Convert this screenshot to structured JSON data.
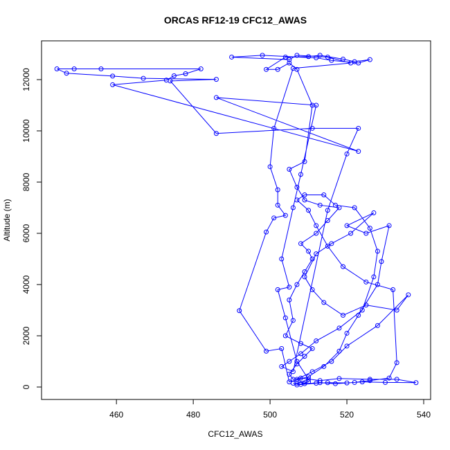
{
  "chart_data": {
    "type": "line",
    "title": "ORCAS RF12-19 CFC12_AWAS",
    "x_label": "CFC12_AWAS",
    "y_label": "Altitude (m)",
    "color": "#0000ff",
    "markers": true,
    "xlim": [
      440.5,
      541.8
    ],
    "ylim": [
      -486,
      13514
    ],
    "xticks": [
      460,
      480,
      500,
      520,
      540
    ],
    "yticks": [
      0,
      2000,
      4000,
      6000,
      8000,
      10000,
      12000
    ],
    "x": [
      506,
      508,
      510,
      507,
      512,
      515,
      520,
      524,
      530,
      538,
      533,
      526,
      518,
      513,
      508,
      506,
      505,
      507,
      509,
      511,
      508,
      504,
      506,
      505,
      507,
      509,
      511,
      510,
      508,
      512,
      515,
      518,
      513,
      509,
      507,
      505,
      509,
      511,
      507,
      505,
      502,
      499,
      504,
      510,
      513,
      519,
      522,
      526,
      523,
      516,
      512,
      498,
      490,
      505,
      507,
      515,
      521,
      506,
      501,
      500,
      502,
      502,
      504,
      501,
      499,
      492,
      499,
      503,
      505,
      510,
      514,
      518,
      520,
      523,
      528,
      529,
      531,
      525,
      520,
      527,
      521,
      516,
      512,
      509,
      511,
      514,
      519,
      525,
      533,
      536,
      528,
      520,
      516,
      511,
      507,
      509,
      513,
      517,
      522,
      526,
      531,
      533,
      532,
      525,
      519,
      515,
      512,
      510,
      507,
      509,
      514,
      517,
      522,
      526,
      528,
      527,
      524,
      518,
      512,
      508,
      505,
      503,
      506,
      515,
      520,
      523,
      511,
      486,
      474,
      486,
      467,
      459,
      447,
      444.5,
      449,
      456,
      482,
      478,
      475,
      473,
      459,
      523,
      486,
      512,
      508,
      506,
      503,
      505,
      502,
      504,
      507,
      510,
      507
    ],
    "values": [
      150,
      100,
      200,
      80,
      150,
      170,
      160,
      200,
      180,
      170,
      300,
      300,
      330,
      250,
      350,
      300,
      500,
      900,
      1200,
      1500,
      1700,
      2000,
      2600,
      3400,
      4000,
      4500,
      5000,
      5300,
      5600,
      6000,
      6500,
      7000,
      7100,
      7300,
      7800,
      8500,
      8800,
      11000,
      12400,
      12650,
      12400,
      12400,
      12880,
      12900,
      12950,
      12800,
      12700,
      12780,
      12650,
      12750,
      12850,
      12950,
      12880,
      12780,
      12950,
      12880,
      12650,
      12440,
      10100,
      8600,
      7700,
      7100,
      6700,
      6600,
      6050,
      2980,
      1400,
      1500,
      200,
      400,
      800,
      1400,
      2100,
      2800,
      4000,
      4900,
      6300,
      6000,
      6300,
      6800,
      6000,
      5600,
      5200,
      4300,
      3800,
      3300,
      2800,
      3200,
      3000,
      3600,
      2400,
      1600,
      1000,
      600,
      300,
      130,
      170,
      130,
      180,
      250,
      350,
      950,
      3800,
      4100,
      4700,
      5500,
      6300,
      6900,
      7300,
      7500,
      7500,
      7100,
      7000,
      6200,
      5300,
      4300,
      3000,
      2300,
      1800,
      1300,
      1000,
      800,
      600,
      6900,
      9100,
      10100,
      10100,
      9900,
      11950,
      12010,
      12050,
      12140,
      12250,
      12420,
      12420,
      12420,
      12420,
      12230,
      12150,
      11980,
      11800,
      9200,
      11300,
      11000,
      8300,
      7000,
      5000,
      3900,
      3800,
      2700,
      1000,
      300,
      150
    ]
  }
}
